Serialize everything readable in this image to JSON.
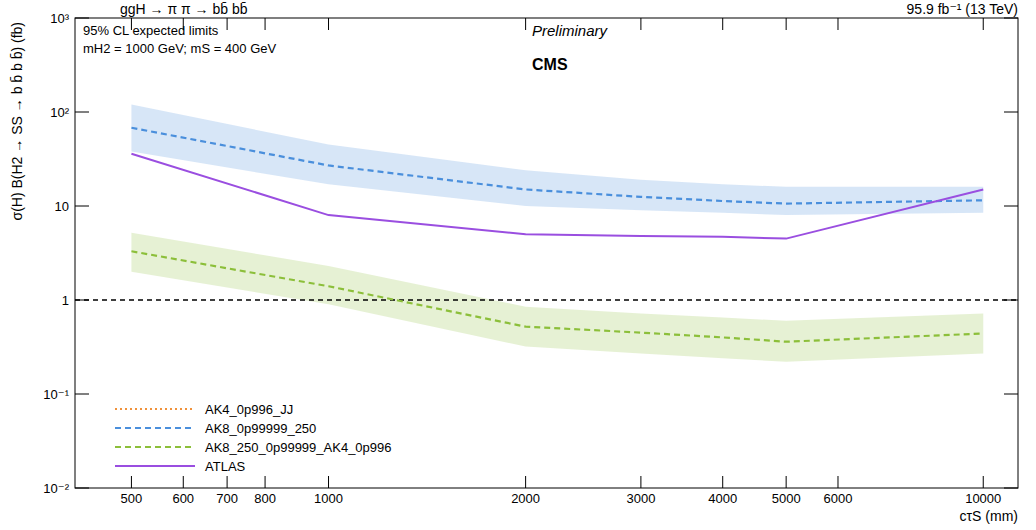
{
  "chart_data": {
    "type": "line",
    "title": "ggH → π π → bb̄ bb̄",
    "subtitle": "95.9 fb⁻¹ (13 TeV)",
    "annotations": [
      "95% CL expected limits",
      "mH2 = 1000 GeV; mS = 400 GeV",
      "Preliminary",
      "CMS"
    ],
    "x_label": "cτS (mm)",
    "y_label": "σ(H) B(H2 → SS → b b̄ b b̄) (fb)",
    "log": true,
    "grid": false,
    "legend": "lower left",
    "x": [
      500,
      1000,
      2000,
      3000,
      4000,
      5000,
      10000
    ],
    "xlim": [
      410,
      11300
    ],
    "xticks": [
      500,
      600,
      700,
      800,
      1000,
      2000,
      3000,
      4000,
      5000,
      6000,
      10000
    ],
    "ylim": [
      0.01,
      1000
    ],
    "yticks": [
      {
        "value": 0.01,
        "label": "10⁻²"
      },
      {
        "value": 0.1,
        "label": "10⁻¹"
      },
      1,
      10,
      {
        "value": 100,
        "label": "10²"
      },
      {
        "value": 1000,
        "label": "10³"
      }
    ],
    "reference_line": 1,
    "series": [
      {
        "name": "AK4_0p996_JJ",
        "color": "#f0913a",
        "line_style": "dotted",
        "values": [
          null,
          null,
          null,
          null,
          null,
          null,
          null
        ]
      },
      {
        "name": "AK8_0p99999_250",
        "color": "#4a8fdc",
        "line_style": "dashed",
        "values": [
          68,
          27,
          15,
          12.5,
          11.3,
          10.6,
          11.5
        ],
        "band_low": [
          38,
          17,
          10,
          9,
          8.5,
          8,
          8.5
        ],
        "band_high": [
          120,
          45,
          24,
          19,
          17,
          16,
          16
        ]
      },
      {
        "name": "AK8_250_0p99999_AK4_0p996",
        "color": "#8cbf3a",
        "line_style": "dashed",
        "values": [
          3.3,
          1.4,
          0.52,
          0.45,
          0.4,
          0.36,
          0.44
        ],
        "band_low": [
          2.0,
          0.9,
          0.32,
          0.27,
          0.24,
          0.22,
          0.27
        ],
        "band_high": [
          5.2,
          2.3,
          0.85,
          0.72,
          0.65,
          0.6,
          0.72
        ]
      },
      {
        "name": "ATLAS",
        "color": "#9a4ee0",
        "line_style": "solid",
        "values": [
          36,
          8,
          5,
          4.8,
          4.7,
          4.5,
          15
        ]
      }
    ]
  }
}
